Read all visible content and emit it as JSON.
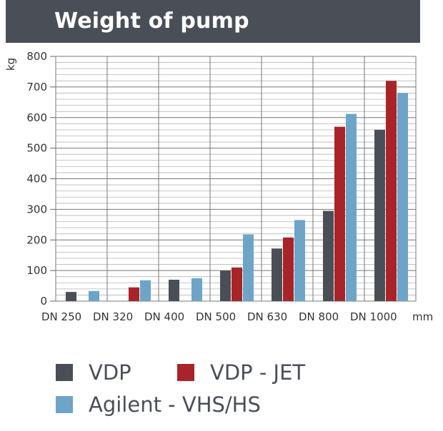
{
  "header": {
    "title": "Weight of pump"
  },
  "chart_data": {
    "type": "bar",
    "title": "Weight of pump",
    "ylabel": "kg",
    "xlabel": "mm",
    "ylim": [
      0,
      800
    ],
    "yticks": [
      0,
      100,
      200,
      300,
      400,
      500,
      600,
      700,
      800
    ],
    "categories": [
      "DN 250",
      "DN 320",
      "DN 400",
      "DN 500",
      "DN 630",
      "DN 800",
      "DN 1000"
    ],
    "series": [
      {
        "name": "VDP",
        "color": "#4a4f57",
        "values": [
          30,
          null,
          70,
          100,
          172,
          295,
          560
        ]
      },
      {
        "name": "VDP - JET",
        "color": "#a82428",
        "values": [
          null,
          45,
          null,
          110,
          208,
          570,
          720
        ]
      },
      {
        "name": "Agilent - VHS/HS",
        "color": "#6ea4c8",
        "values": [
          33,
          68,
          75,
          218,
          265,
          612,
          680
        ]
      }
    ],
    "grid": true,
    "legend_position": "bottom"
  }
}
